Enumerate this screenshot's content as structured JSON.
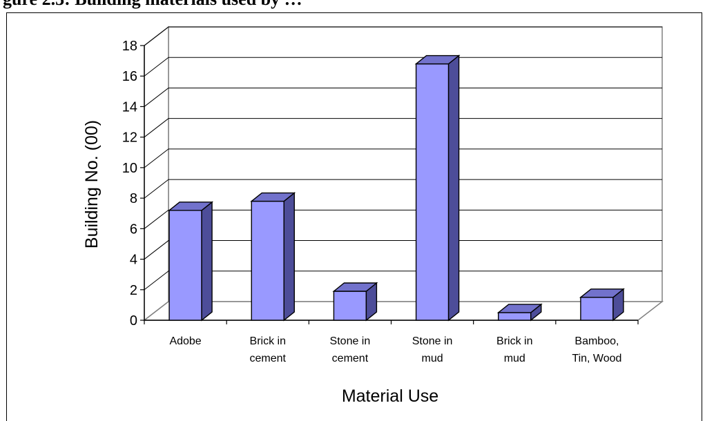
{
  "header": {
    "partial_title": "gure 2.3: Building materials used by …"
  },
  "chart_data": {
    "type": "bar",
    "categories": [
      [
        "Adobe"
      ],
      [
        "Brick in",
        "cement"
      ],
      [
        "Stone in",
        "cement"
      ],
      [
        "Stone in",
        "mud"
      ],
      [
        "Brick in",
        "mud"
      ],
      [
        "Bamboo,",
        "Tin, Wood"
      ]
    ],
    "values": [
      7.2,
      7.8,
      1.9,
      16.8,
      0.5,
      1.5
    ],
    "xlabel": "Material Use",
    "ylabel": "Building No. (00)",
    "ylim": [
      0,
      18
    ],
    "yticks": [
      0,
      2,
      4,
      6,
      8,
      10,
      12,
      14,
      16,
      18
    ],
    "grid": true,
    "legend": "none",
    "colors": {
      "bar_front": "#9999ff",
      "bar_side": "#4d4d99",
      "bar_top": "#7272cc",
      "wall": "#ffffff",
      "grid": "#000000",
      "wall_border": "#808080"
    }
  }
}
